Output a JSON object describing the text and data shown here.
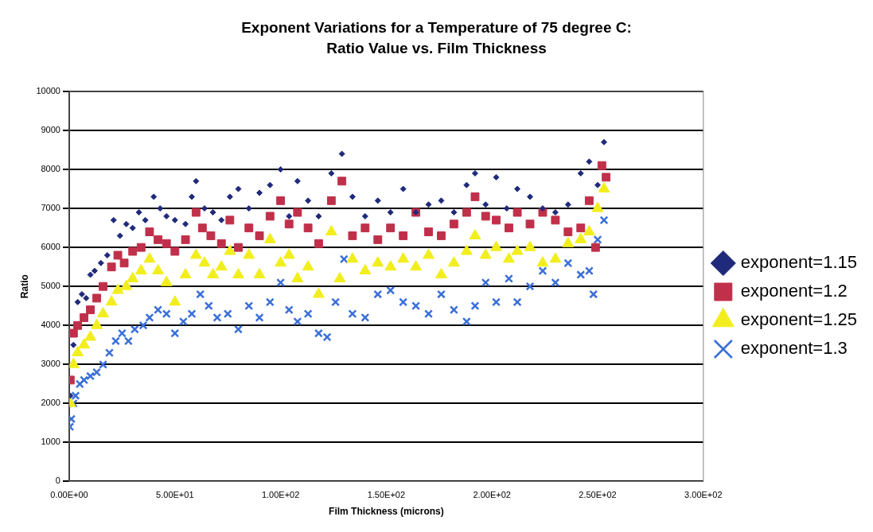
{
  "chart_data": {
    "type": "scatter",
    "title": "Exponent Variations for a Temperature of 75 degree C:\nRatio Value vs. Film Thickness",
    "xlabel": "Film Thickness (microns)",
    "ylabel": "Ratio",
    "xlim": [
      0,
      300
    ],
    "xticks": [
      {
        "value": 0,
        "label": "0.00E+00"
      },
      {
        "value": 50,
        "label": "5.00E+01"
      },
      {
        "value": 100,
        "label": "1.00E+02"
      },
      {
        "value": 150,
        "label": "1.50E+02"
      },
      {
        "value": 200,
        "label": "2.00E+02"
      },
      {
        "value": 250,
        "label": "2.50E+02"
      },
      {
        "value": 300,
        "label": "3.00E+02"
      }
    ],
    "ylim": [
      0,
      10000
    ],
    "yticks": [
      0,
      1000,
      2000,
      3000,
      4000,
      5000,
      6000,
      7000,
      8000,
      9000,
      10000
    ],
    "grid": "y",
    "legend": "right",
    "series": [
      {
        "name": "exponent=1.15",
        "color": "#1f2a7a",
        "marker": "diamond",
        "x": [
          0.5,
          2,
          4,
          6,
          8,
          10,
          12,
          15,
          18,
          21,
          24,
          27,
          30,
          33,
          36,
          40,
          43,
          46,
          50,
          55,
          58,
          60,
          64,
          68,
          72,
          76,
          80,
          85,
          90,
          95,
          100,
          104,
          108,
          113,
          118,
          124,
          129,
          134,
          140,
          146,
          152,
          158,
          164,
          170,
          176,
          182,
          188,
          192,
          197,
          202,
          207,
          212,
          218,
          224,
          230,
          236,
          242,
          246,
          250,
          253
        ],
        "values": [
          2200,
          3500,
          4600,
          4800,
          4700,
          5300,
          5400,
          5600,
          5800,
          6700,
          6300,
          6600,
          6500,
          6900,
          6700,
          7300,
          7000,
          6800,
          6700,
          6600,
          7300,
          7700,
          7000,
          6900,
          6700,
          7300,
          7500,
          7000,
          7400,
          7600,
          8000,
          6800,
          7700,
          7200,
          6800,
          7900,
          8400,
          7300,
          6800,
          7200,
          6900,
          7500,
          6900,
          7100,
          7200,
          6900,
          7600,
          7900,
          7100,
          7800,
          7000,
          7500,
          7300,
          7000,
          6900,
          7100,
          7900,
          8200,
          7600,
          8700
        ]
      },
      {
        "name": "exponent=1.2",
        "color": "#c0304a",
        "marker": "square",
        "x": [
          0.5,
          2,
          4,
          7,
          10,
          13,
          16,
          20,
          23,
          26,
          30,
          34,
          38,
          42,
          46,
          50,
          55,
          60,
          63,
          67,
          72,
          76,
          80,
          85,
          90,
          95,
          100,
          104,
          108,
          113,
          118,
          124,
          129,
          134,
          140,
          146,
          152,
          158,
          164,
          170,
          176,
          182,
          188,
          192,
          197,
          202,
          208,
          212,
          218,
          224,
          230,
          236,
          242,
          246,
          249,
          252,
          254
        ],
        "values": [
          2600,
          3800,
          4000,
          4200,
          4400,
          4700,
          5000,
          5500,
          5800,
          5600,
          5900,
          6000,
          6400,
          6200,
          6100,
          5900,
          6200,
          6900,
          6500,
          6300,
          6100,
          6700,
          6000,
          6500,
          6300,
          6800,
          7200,
          6600,
          6900,
          6500,
          6100,
          7200,
          7700,
          6300,
          6500,
          6200,
          6500,
          6300,
          6900,
          6400,
          6300,
          6600,
          6900,
          7300,
          6800,
          6700,
          6500,
          6900,
          6600,
          6900,
          6700,
          6400,
          6500,
          7200,
          6000,
          8100,
          7800
        ]
      },
      {
        "name": "exponent=1.25",
        "color": "#f2ee1e",
        "marker": "triangle",
        "x": [
          0.5,
          2,
          4,
          7,
          10,
          13,
          16,
          20,
          23,
          27,
          30,
          34,
          38,
          42,
          46,
          50,
          55,
          60,
          64,
          68,
          72,
          76,
          80,
          85,
          90,
          95,
          100,
          104,
          108,
          113,
          118,
          124,
          128,
          134,
          140,
          146,
          152,
          158,
          164,
          170,
          176,
          182,
          188,
          192,
          197,
          202,
          208,
          212,
          218,
          224,
          230,
          236,
          242,
          246,
          250,
          253
        ],
        "values": [
          2000,
          3000,
          3300,
          3500,
          3700,
          4000,
          4300,
          4600,
          4900,
          5000,
          5200,
          5400,
          5700,
          5400,
          5100,
          4600,
          5300,
          5800,
          5600,
          5300,
          5500,
          5900,
          5300,
          5800,
          5300,
          6200,
          5600,
          5800,
          5200,
          5500,
          4800,
          6400,
          5200,
          5700,
          5400,
          5600,
          5500,
          5700,
          5500,
          5800,
          5300,
          5600,
          5900,
          6300,
          5800,
          6000,
          5700,
          5900,
          6000,
          5600,
          5700,
          6100,
          6200,
          6400,
          7000,
          7500
        ]
      },
      {
        "name": "exponent=1.3",
        "color": "#3a6fd8",
        "marker": "cross",
        "x": [
          0.3,
          1,
          2,
          3,
          5,
          7,
          10,
          13,
          16,
          19,
          22,
          25,
          28,
          31,
          35,
          38,
          42,
          46,
          50,
          54,
          58,
          62,
          66,
          70,
          75,
          80,
          85,
          90,
          95,
          100,
          104,
          108,
          113,
          118,
          122,
          126,
          130,
          134,
          140,
          146,
          152,
          158,
          164,
          170,
          176,
          182,
          188,
          192,
          197,
          202,
          208,
          212,
          218,
          224,
          230,
          236,
          242,
          246,
          248,
          250,
          253
        ],
        "values": [
          1400,
          1600,
          2000,
          2200,
          2500,
          2600,
          2700,
          2800,
          3000,
          3300,
          3600,
          3800,
          3600,
          3900,
          4000,
          4200,
          4400,
          4300,
          3800,
          4100,
          4300,
          4800,
          4500,
          4200,
          4300,
          3900,
          4500,
          4200,
          4600,
          5100,
          4400,
          4100,
          4300,
          3800,
          3700,
          4600,
          5700,
          4300,
          4200,
          4800,
          4900,
          4600,
          4500,
          4300,
          4800,
          4400,
          4100,
          4500,
          5100,
          4600,
          5200,
          4600,
          5000,
          5400,
          5100,
          5600,
          5300,
          5400,
          4800,
          6200,
          6700
        ]
      }
    ]
  }
}
